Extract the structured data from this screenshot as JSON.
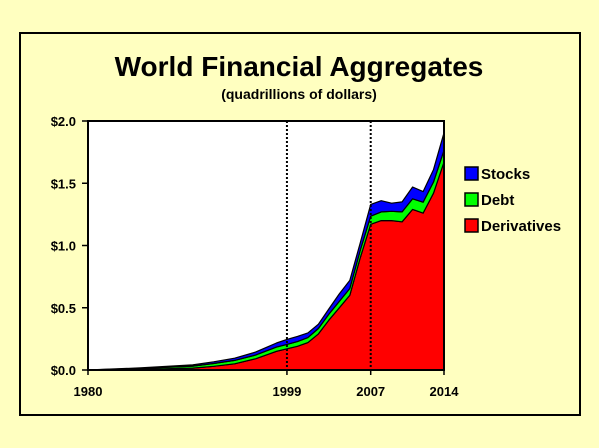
{
  "chart_data": {
    "type": "area",
    "title": "World Financial Aggregates",
    "subtitle": "(quadrillions of dollars)",
    "x_tick_labels": [
      "1980",
      "1999",
      "2007",
      "2014"
    ],
    "y_tick_labels": [
      "$0.0",
      "$0.5",
      "$1.0",
      "$1.5",
      "$2.0"
    ],
    "ylim": [
      0,
      2.0
    ],
    "xlim": [
      1980,
      2014
    ],
    "stacked": true,
    "vertical_reference_lines": [
      1999,
      2007
    ],
    "legend_position": "right",
    "x": [
      1980,
      1985,
      1990,
      1992,
      1994,
      1996,
      1997,
      1998,
      1999,
      2000,
      2001,
      2002,
      2003,
      2004,
      2005,
      2006,
      2007,
      2008,
      2009,
      2010,
      2011,
      2012,
      2013,
      2014
    ],
    "series": [
      {
        "name": "Derivatives",
        "color": "#ff0000",
        "values": [
          0.0,
          0.005,
          0.015,
          0.03,
          0.05,
          0.09,
          0.12,
          0.15,
          0.17,
          0.19,
          0.22,
          0.29,
          0.4,
          0.5,
          0.6,
          0.9,
          1.17,
          1.2,
          1.2,
          1.19,
          1.29,
          1.26,
          1.42,
          1.67
        ]
      },
      {
        "name": "Debt",
        "color": "#00ff00",
        "values": [
          0.0,
          0.008,
          0.016,
          0.022,
          0.027,
          0.03,
          0.032,
          0.034,
          0.036,
          0.038,
          0.04,
          0.043,
          0.047,
          0.051,
          0.055,
          0.06,
          0.065,
          0.07,
          0.075,
          0.08,
          0.085,
          0.088,
          0.09,
          0.095
        ]
      },
      {
        "name": "Stocks",
        "color": "#0000ff",
        "values": [
          0.0,
          0.004,
          0.01,
          0.014,
          0.018,
          0.024,
          0.028,
          0.033,
          0.04,
          0.042,
          0.038,
          0.035,
          0.043,
          0.06,
          0.065,
          0.06,
          0.095,
          0.09,
          0.065,
          0.08,
          0.095,
          0.085,
          0.1,
          0.14
        ]
      }
    ]
  }
}
